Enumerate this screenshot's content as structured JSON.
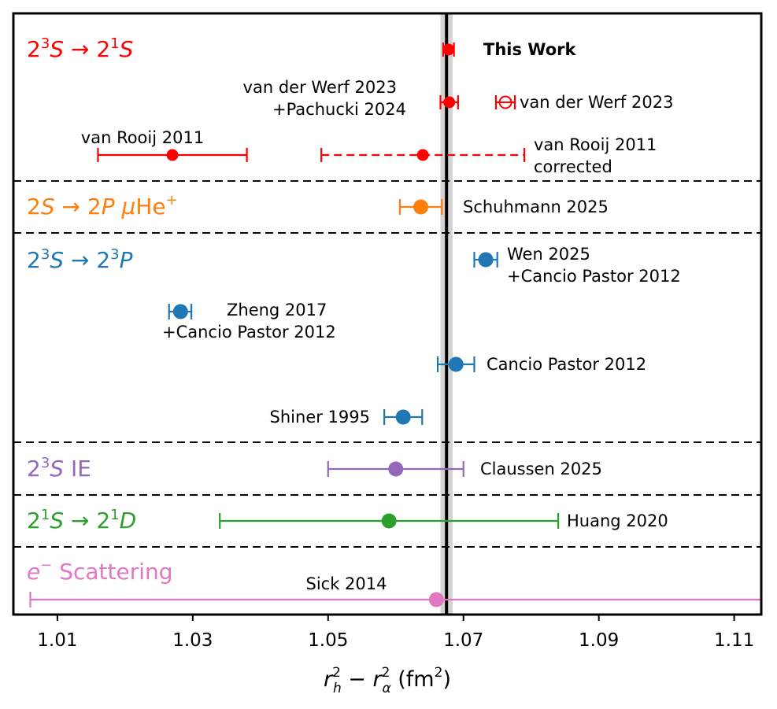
{
  "chart_data": {
    "type": "scatter",
    "xlabel": "r_h² − r_α² (fm²)",
    "xlim": [
      1.0035,
      1.114
    ],
    "xticks": [
      "1.01",
      "1.03",
      "1.05",
      "1.07",
      "1.09",
      "1.11"
    ],
    "xtick_values": [
      1.01,
      1.03,
      1.05,
      1.07,
      1.09,
      1.11
    ],
    "reference_line": {
      "value": 1.0675,
      "band": [
        1.0666,
        1.0684
      ]
    },
    "colors": {
      "red": "#ff0000",
      "orange": "#ff7f0e",
      "blue": "#1f77b4",
      "purple": "#9467bd",
      "green": "#2ca02c",
      "pink": "#e377c2"
    },
    "groups": [
      {
        "label": "2³S → 2¹S",
        "color": "#ff0000"
      },
      {
        "label": "2S → 2P μHe⁺",
        "color": "#ff7f0e"
      },
      {
        "label": "2³S → 2³P",
        "color": "#1f77b4"
      },
      {
        "label": "2³S IE",
        "color": "#9467bd"
      },
      {
        "label": "2¹S → 2¹D",
        "color": "#2ca02c"
      },
      {
        "label": "e⁻ Scattering",
        "color": "#e377c2"
      }
    ],
    "series": [
      {
        "label": "This Work",
        "value": 1.0678,
        "lo": 1.067,
        "hi": 1.0686,
        "color": "#ff0000",
        "marker": "filled-small",
        "bold": true
      },
      {
        "label": "van der Werf 2023 +Pachucki 2024",
        "lines": [
          "van der Werf 2023",
          "+Pachucki 2024"
        ],
        "value": 1.0679,
        "lo": 1.0666,
        "hi": 1.0692,
        "color": "#ff0000",
        "marker": "filled-small"
      },
      {
        "label": "van der Werf 2023",
        "value": 1.0762,
        "lo": 1.0748,
        "hi": 1.0776,
        "color": "#ff0000",
        "marker": "open-small"
      },
      {
        "label": "van Rooij 2011",
        "value": 1.027,
        "lo": 1.016,
        "hi": 1.038,
        "color": "#ff0000",
        "marker": "filled-small"
      },
      {
        "label": "van Rooij 2011 corrected",
        "lines": [
          "van Rooij 2011",
          "corrected"
        ],
        "value": 1.064,
        "lo": 1.049,
        "hi": 1.079,
        "color": "#ff0000",
        "marker": "filled-small",
        "dashed": true
      },
      {
        "label": "Schuhmann 2025",
        "value": 1.0637,
        "lo": 1.0606,
        "hi": 1.0668,
        "color": "#ff7f0e",
        "marker": "filled"
      },
      {
        "label": "Wen 2025 +Cancio Pastor 2012",
        "lines": [
          "Wen 2025",
          "+Cancio Pastor 2012"
        ],
        "value": 1.0733,
        "lo": 1.0716,
        "hi": 1.075,
        "color": "#1f77b4",
        "marker": "filled"
      },
      {
        "label": "Zheng 2017 +Cancio Pastor 2012",
        "lines": [
          "Zheng 2017",
          "+Cancio Pastor 2012"
        ],
        "value": 1.0282,
        "lo": 1.0265,
        "hi": 1.0298,
        "color": "#1f77b4",
        "marker": "filled"
      },
      {
        "label": "Cancio Pastor 2012",
        "value": 1.0689,
        "lo": 1.0662,
        "hi": 1.0716,
        "color": "#1f77b4",
        "marker": "filled"
      },
      {
        "label": "Shiner 1995",
        "value": 1.0611,
        "lo": 1.0583,
        "hi": 1.0639,
        "color": "#1f77b4",
        "marker": "filled"
      },
      {
        "label": "Claussen 2025",
        "value": 1.06,
        "lo": 1.05,
        "hi": 1.07,
        "color": "#9467bd",
        "marker": "filled"
      },
      {
        "label": "Huang 2020",
        "value": 1.059,
        "lo": 1.034,
        "hi": 1.084,
        "color": "#2ca02c",
        "marker": "filled"
      },
      {
        "label": "Sick 2014",
        "value": 1.066,
        "lo": 1.006,
        "hi": 1.126,
        "color": "#e377c2",
        "marker": "filled"
      }
    ]
  }
}
